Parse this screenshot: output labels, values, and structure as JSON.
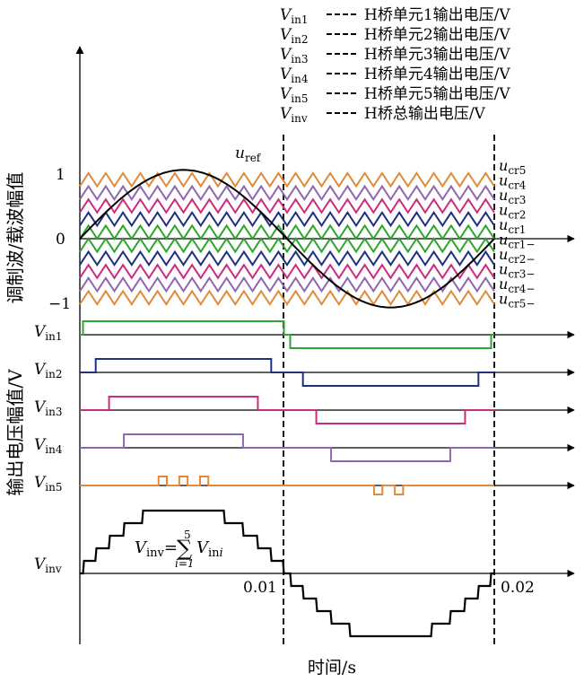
{
  "legend": [
    {
      "sym": "V",
      "sub": "in1",
      "desc": "H桥单元1输出电压/V"
    },
    {
      "sym": "V",
      "sub": "in2",
      "desc": "H桥单元2输出电压/V"
    },
    {
      "sym": "V",
      "sub": "in3",
      "desc": "H桥单元3输出电压/V"
    },
    {
      "sym": "V",
      "sub": "in4",
      "desc": "H桥单元4输出电压/V"
    },
    {
      "sym": "V",
      "sub": "in5",
      "desc": "H桥单元5输出电压/V"
    },
    {
      "sym": "V",
      "sub": "inv",
      "desc": "H桥总输出电压/V"
    }
  ],
  "carrier_labels": [
    "cr5",
    "cr4",
    "cr3",
    "cr2",
    "cr1",
    "cr1−",
    "cr2−",
    "cr3−",
    "cr4−",
    "cr5−"
  ],
  "carrier_colors": [
    "#e08a3a",
    "#9166b0",
    "#cc2c7e",
    "#1e2f84",
    "#2ea52e",
    "#2ea52e",
    "#1e2f84",
    "#cc2c7e",
    "#9166b0",
    "#e08a3a"
  ],
  "ref_label": {
    "sym": "u",
    "sub": "ref"
  },
  "carrier_sym": "u",
  "ylabel_top": "调制波/载波幅值",
  "ylabel_bottom": "输出电压幅值/V",
  "xlabel": "时间/s",
  "tick_1": "1",
  "tick_0": "0",
  "tick_m1": "−1",
  "x_ticks": [
    "0.01",
    "0.02"
  ],
  "pulse_labels": [
    {
      "sym": "V",
      "sub": "in1",
      "color": "#2ea52e"
    },
    {
      "sym": "V",
      "sub": "in2",
      "color": "#1e2f84"
    },
    {
      "sym": "V",
      "sub": "in3",
      "color": "#cc2c7e"
    },
    {
      "sym": "V",
      "sub": "in4",
      "color": "#9166b0"
    },
    {
      "sym": "V",
      "sub": "in5",
      "color": "#e08a3a"
    }
  ],
  "vinv_label": {
    "sym": "V",
    "sub": "inv"
  },
  "formula": {
    "lhs": "V",
    "lhs_sub": "inv",
    "eq": "=",
    "sum_top": "5",
    "sum_bottom": "i=1",
    "rhs": "V",
    "rhs_sub": "in",
    "rhs_idx": "i"
  }
}
